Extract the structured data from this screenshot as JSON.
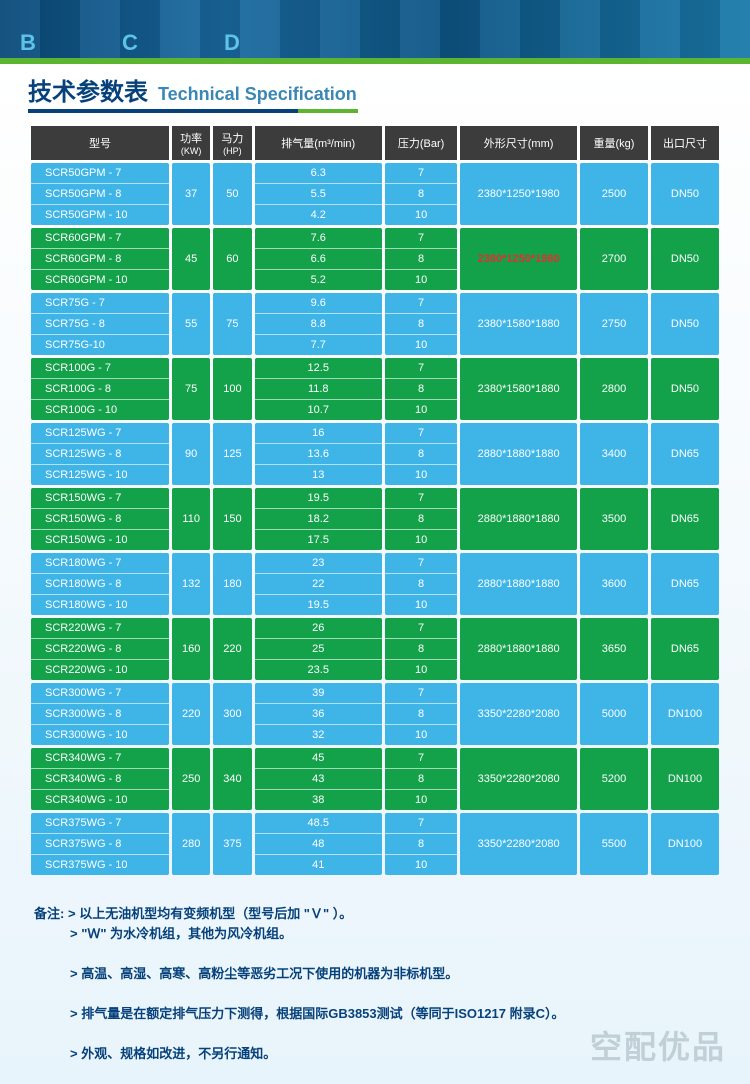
{
  "banner_letters": "B   C   D",
  "title": {
    "cn": "技术参数表",
    "en": "Technical Specification"
  },
  "headers": {
    "model": "型号",
    "power": "功率",
    "power_sub": "(KW)",
    "hp": "马力",
    "hp_sub": "(HP)",
    "air": "排气量(m³/min)",
    "press": "压力(Bar)",
    "dim": "外形尺寸(mm)",
    "weight": "重量(kg)",
    "outlet": "出口尺寸"
  },
  "colors": {
    "blue": "#3eb5e6",
    "green": "#13a24a",
    "header": "#3c3c3c",
    "title": "#06417a",
    "stripe": "#5cb531"
  },
  "groups": [
    {
      "color": "blue",
      "models": [
        "SCR50GPM - 7",
        "SCR50GPM - 8",
        "SCR50GPM - 10"
      ],
      "kw": "37",
      "hp": "50",
      "air": [
        "6.3",
        "5.5",
        "4.2"
      ],
      "press": [
        "7",
        "8",
        "10"
      ],
      "dim": "2380*1250*1980",
      "wt": "2500",
      "out": "DN50",
      "dim_hl": false
    },
    {
      "color": "green",
      "models": [
        "SCR60GPM - 7",
        "SCR60GPM - 8",
        "SCR60GPM - 10"
      ],
      "kw": "45",
      "hp": "60",
      "air": [
        "7.6",
        "6.6",
        "5.2"
      ],
      "press": [
        "7",
        "8",
        "10"
      ],
      "dim": "2380*1250*1980",
      "wt": "2700",
      "out": "DN50",
      "dim_hl": true
    },
    {
      "color": "blue",
      "models": [
        "SCR75G - 7",
        "SCR75G - 8",
        "SCR75G-10"
      ],
      "kw": "55",
      "hp": "75",
      "air": [
        "9.6",
        "8.8",
        "7.7"
      ],
      "press": [
        "7",
        "8",
        "10"
      ],
      "dim": "2380*1580*1880",
      "wt": "2750",
      "out": "DN50",
      "dim_hl": false
    },
    {
      "color": "green",
      "models": [
        "SCR100G - 7",
        "SCR100G - 8",
        "SCR100G - 10"
      ],
      "kw": "75",
      "hp": "100",
      "air": [
        "12.5",
        "11.8",
        "10.7"
      ],
      "press": [
        "7",
        "8",
        "10"
      ],
      "dim": "2380*1580*1880",
      "wt": "2800",
      "out": "DN50",
      "dim_hl": false
    },
    {
      "color": "blue",
      "models": [
        "SCR125WG - 7",
        "SCR125WG - 8",
        "SCR125WG - 10"
      ],
      "kw": "90",
      "hp": "125",
      "air": [
        "16",
        "13.6",
        "13"
      ],
      "press": [
        "7",
        "8",
        "10"
      ],
      "dim": "2880*1880*1880",
      "wt": "3400",
      "out": "DN65",
      "dim_hl": false
    },
    {
      "color": "green",
      "models": [
        "SCR150WG - 7",
        "SCR150WG - 8",
        "SCR150WG - 10"
      ],
      "kw": "110",
      "hp": "150",
      "air": [
        "19.5",
        "18.2",
        "17.5"
      ],
      "press": [
        "7",
        "8",
        "10"
      ],
      "dim": "2880*1880*1880",
      "wt": "3500",
      "out": "DN65",
      "dim_hl": false
    },
    {
      "color": "blue",
      "models": [
        "SCR180WG - 7",
        "SCR180WG - 8",
        "SCR180WG - 10"
      ],
      "kw": "132",
      "hp": "180",
      "air": [
        "23",
        "22",
        "19.5"
      ],
      "press": [
        "7",
        "8",
        "10"
      ],
      "dim": "2880*1880*1880",
      "wt": "3600",
      "out": "DN65",
      "dim_hl": false
    },
    {
      "color": "green",
      "models": [
        "SCR220WG - 7",
        "SCR220WG - 8",
        "SCR220WG - 10"
      ],
      "kw": "160",
      "hp": "220",
      "air": [
        "26",
        "25",
        "23.5"
      ],
      "press": [
        "7",
        "8",
        "10"
      ],
      "dim": "2880*1880*1880",
      "wt": "3650",
      "out": "DN65",
      "dim_hl": false
    },
    {
      "color": "blue",
      "models": [
        "SCR300WG - 7",
        "SCR300WG - 8",
        "SCR300WG - 10"
      ],
      "kw": "220",
      "hp": "300",
      "air": [
        "39",
        "36",
        "32"
      ],
      "press": [
        "7",
        "8",
        "10"
      ],
      "dim": "3350*2280*2080",
      "wt": "5000",
      "out": "DN100",
      "dim_hl": false
    },
    {
      "color": "green",
      "models": [
        "SCR340WG - 7",
        "SCR340WG - 8",
        "SCR340WG - 10"
      ],
      "kw": "250",
      "hp": "340",
      "air": [
        "45",
        "43",
        "38"
      ],
      "press": [
        "7",
        "8",
        "10"
      ],
      "dim": "3350*2280*2080",
      "wt": "5200",
      "out": "DN100",
      "dim_hl": false
    },
    {
      "color": "blue",
      "models": [
        "SCR375WG - 7",
        "SCR375WG - 8",
        "SCR375WG - 10"
      ],
      "kw": "280",
      "hp": "375",
      "air": [
        "48.5",
        "48",
        "41"
      ],
      "press": [
        "7",
        "8",
        "10"
      ],
      "dim": "3350*2280*2080",
      "wt": "5500",
      "out": "DN100",
      "dim_hl": false
    }
  ],
  "notes": {
    "label": "备注:",
    "lines": [
      "以上无油机型均有变频机型（型号后加 \"Ｖ\" ）。",
      "\"Ｗ\" 为水冷机组，其他为风冷机组。",
      "高温、高湿、高寒、高粉尘等恶劣工况下使用的机器为非标机型。",
      "排气量是在额定排气压力下测得，根据国际GB3853测试（等同于ISO1217 附录C）。",
      "外观、规格如改进，不另行通知。"
    ]
  },
  "watermark": "空配优品"
}
